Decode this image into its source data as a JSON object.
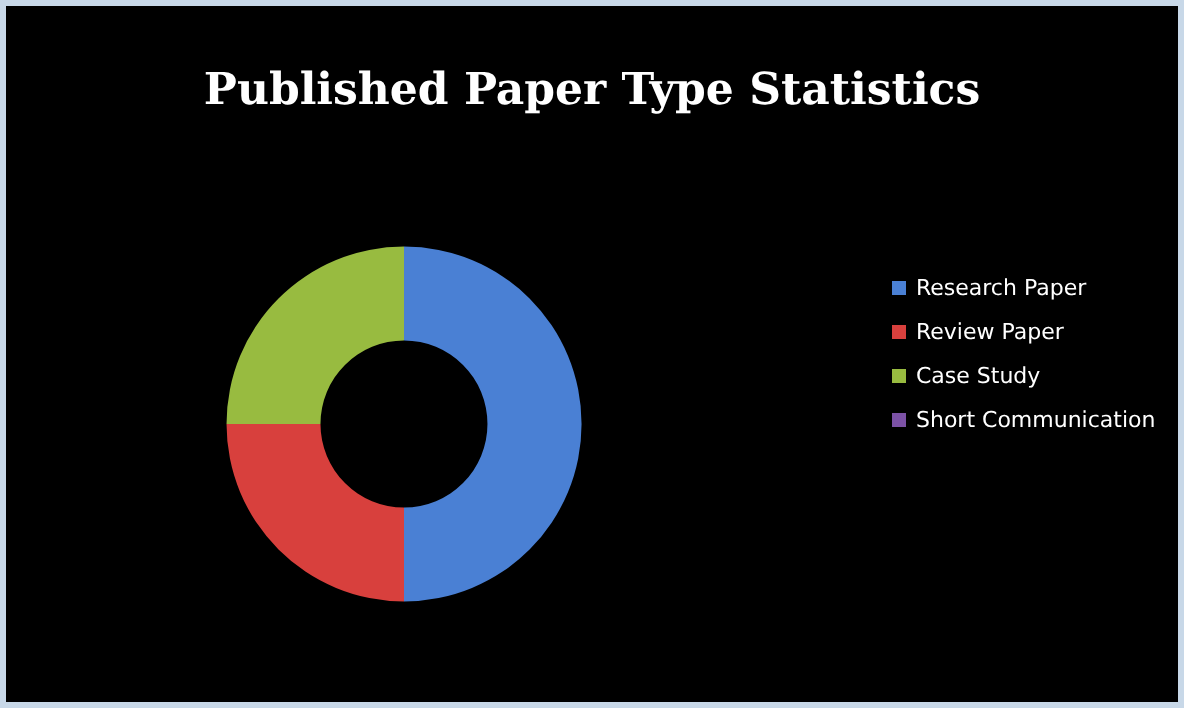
{
  "chart_data": {
    "type": "donut",
    "title": "Published Paper Type Statistics",
    "categories": [
      "Research Paper",
      "Review Paper",
      "Case Study",
      "Short Communication"
    ],
    "values": [
      50,
      25,
      25,
      0
    ],
    "colors": [
      "#4a80d4",
      "#d8403d",
      "#98bb40",
      "#7c52a6"
    ],
    "legend": "right"
  }
}
